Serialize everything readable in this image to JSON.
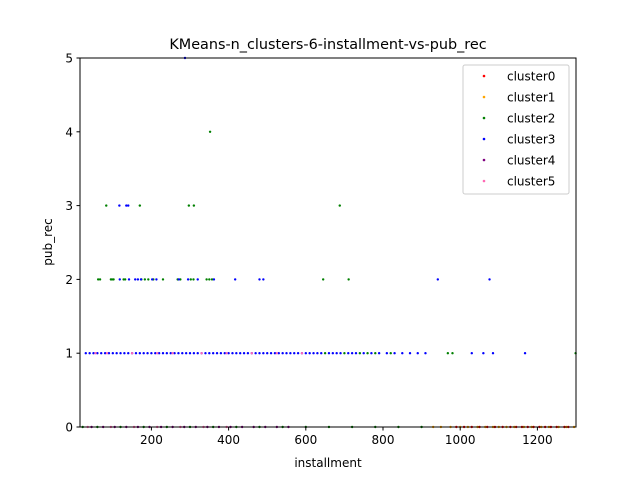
{
  "chart_data": {
    "type": "scatter",
    "title": "KMeans-n_clusters-6-installment-vs-pub_rec",
    "xlabel": "installment",
    "ylabel": "pub_rec",
    "xlim": [
      15,
      1300
    ],
    "ylim": [
      0,
      5
    ],
    "x_ticks": [
      200,
      400,
      600,
      800,
      1000,
      1200
    ],
    "y_ticks": [
      0,
      1,
      2,
      3,
      4,
      5
    ],
    "grid": false,
    "legend_position": "top-right",
    "series": [
      {
        "name": "cluster0",
        "color": "#ff0000",
        "points": [
          [
            1280,
            0
          ],
          [
            1270,
            0
          ],
          [
            1250,
            0
          ],
          [
            1235,
            0
          ],
          [
            1220,
            0
          ],
          [
            1205,
            0
          ],
          [
            1190,
            0
          ],
          [
            1175,
            0
          ],
          [
            1160,
            0
          ],
          [
            1145,
            0
          ],
          [
            1130,
            0
          ],
          [
            1110,
            0
          ],
          [
            1090,
            0
          ],
          [
            1070,
            0
          ],
          [
            1050,
            0
          ],
          [
            1030,
            0
          ],
          [
            1010,
            0
          ],
          [
            990,
            0
          ]
        ]
      },
      {
        "name": "cluster1",
        "color": "#ffa500",
        "points": [
          [
            930,
            0
          ],
          [
            950,
            0
          ],
          [
            975,
            0
          ],
          [
            1000,
            0
          ],
          [
            1020,
            0
          ],
          [
            1045,
            0
          ],
          [
            1065,
            0
          ],
          [
            1085,
            0
          ],
          [
            1100,
            0
          ],
          [
            1120,
            0
          ],
          [
            1140,
            0
          ],
          [
            1165,
            0
          ],
          [
            1185,
            0
          ],
          [
            1210,
            0
          ],
          [
            1230,
            0
          ],
          [
            1255,
            0
          ],
          [
            1275,
            0
          ],
          [
            1295,
            0
          ]
        ]
      },
      {
        "name": "cluster2",
        "color": "#008000",
        "points": [
          [
            83,
            3
          ],
          [
            170,
            3
          ],
          [
            297,
            3
          ],
          [
            310,
            3
          ],
          [
            688,
            3
          ],
          [
            352,
            4
          ],
          [
            62,
            2
          ],
          [
            67,
            2
          ],
          [
            95,
            2
          ],
          [
            98,
            2
          ],
          [
            102,
            2
          ],
          [
            128,
            2
          ],
          [
            132,
            2
          ],
          [
            174,
            2
          ],
          [
            183,
            2
          ],
          [
            192,
            2
          ],
          [
            205,
            2
          ],
          [
            230,
            2
          ],
          [
            268,
            2
          ],
          [
            275,
            2
          ],
          [
            302,
            2
          ],
          [
            309,
            2
          ],
          [
            343,
            2
          ],
          [
            350,
            2
          ],
          [
            357,
            2
          ],
          [
            645,
            2
          ],
          [
            711,
            2
          ],
          [
            1299,
            1
          ],
          [
            968,
            1
          ],
          [
            980,
            1
          ],
          [
            740,
            1
          ],
          [
            760,
            1
          ],
          [
            780,
            1
          ],
          [
            820,
            1
          ],
          [
            650,
            1
          ],
          [
            700,
            1
          ],
          [
            22,
            0
          ],
          [
            60,
            0
          ],
          [
            120,
            0
          ],
          [
            180,
            0
          ],
          [
            240,
            0
          ],
          [
            300,
            0
          ],
          [
            360,
            0
          ],
          [
            420,
            0
          ],
          [
            480,
            0
          ],
          [
            540,
            0
          ],
          [
            600,
            0
          ],
          [
            660,
            0
          ],
          [
            720,
            0
          ],
          [
            780,
            0
          ],
          [
            840,
            0
          ],
          [
            900,
            0
          ]
        ]
      },
      {
        "name": "cluster3",
        "color": "#0000ff",
        "points": [
          [
            117,
            3
          ],
          [
            135,
            3
          ],
          [
            140,
            3
          ],
          [
            287,
            5
          ],
          [
            118,
            2
          ],
          [
            142,
            2
          ],
          [
            158,
            2
          ],
          [
            165,
            2
          ],
          [
            173,
            2
          ],
          [
            202,
            2
          ],
          [
            213,
            2
          ],
          [
            271,
            2
          ],
          [
            295,
            2
          ],
          [
            320,
            2
          ],
          [
            362,
            2
          ],
          [
            417,
            2
          ],
          [
            480,
            2
          ],
          [
            490,
            2
          ],
          [
            942,
            2
          ],
          [
            1076,
            2
          ],
          [
            30,
            1
          ],
          [
            40,
            1
          ],
          [
            50,
            1
          ],
          [
            60,
            1
          ],
          [
            70,
            1
          ],
          [
            80,
            1
          ],
          [
            90,
            1
          ],
          [
            100,
            1
          ],
          [
            110,
            1
          ],
          [
            120,
            1
          ],
          [
            130,
            1
          ],
          [
            140,
            1
          ],
          [
            150,
            1
          ],
          [
            160,
            1
          ],
          [
            170,
            1
          ],
          [
            180,
            1
          ],
          [
            190,
            1
          ],
          [
            200,
            1
          ],
          [
            210,
            1
          ],
          [
            220,
            1
          ],
          [
            230,
            1
          ],
          [
            240,
            1
          ],
          [
            250,
            1
          ],
          [
            260,
            1
          ],
          [
            270,
            1
          ],
          [
            280,
            1
          ],
          [
            290,
            1
          ],
          [
            300,
            1
          ],
          [
            310,
            1
          ],
          [
            320,
            1
          ],
          [
            330,
            1
          ],
          [
            340,
            1
          ],
          [
            350,
            1
          ],
          [
            360,
            1
          ],
          [
            370,
            1
          ],
          [
            380,
            1
          ],
          [
            390,
            1
          ],
          [
            400,
            1
          ],
          [
            410,
            1
          ],
          [
            420,
            1
          ],
          [
            430,
            1
          ],
          [
            440,
            1
          ],
          [
            450,
            1
          ],
          [
            460,
            1
          ],
          [
            470,
            1
          ],
          [
            480,
            1
          ],
          [
            490,
            1
          ],
          [
            500,
            1
          ],
          [
            510,
            1
          ],
          [
            520,
            1
          ],
          [
            530,
            1
          ],
          [
            540,
            1
          ],
          [
            550,
            1
          ],
          [
            560,
            1
          ],
          [
            570,
            1
          ],
          [
            580,
            1
          ],
          [
            590,
            1
          ],
          [
            600,
            1
          ],
          [
            610,
            1
          ],
          [
            620,
            1
          ],
          [
            630,
            1
          ],
          [
            640,
            1
          ],
          [
            660,
            1
          ],
          [
            670,
            1
          ],
          [
            680,
            1
          ],
          [
            690,
            1
          ],
          [
            710,
            1
          ],
          [
            720,
            1
          ],
          [
            730,
            1
          ],
          [
            750,
            1
          ],
          [
            770,
            1
          ],
          [
            790,
            1
          ],
          [
            810,
            1
          ],
          [
            830,
            1
          ],
          [
            850,
            1
          ],
          [
            870,
            1
          ],
          [
            890,
            1
          ],
          [
            910,
            1
          ],
          [
            1030,
            1
          ],
          [
            1060,
            1
          ],
          [
            1085,
            1
          ],
          [
            1168,
            1
          ]
        ]
      },
      {
        "name": "cluster4",
        "color": "#800080",
        "points": [
          [
            45,
            0
          ],
          [
            75,
            0
          ],
          [
            105,
            0
          ],
          [
            135,
            0
          ],
          [
            165,
            0
          ],
          [
            195,
            0
          ],
          [
            225,
            0
          ],
          [
            255,
            0
          ],
          [
            285,
            0
          ],
          [
            315,
            0
          ],
          [
            345,
            0
          ],
          [
            375,
            0
          ],
          [
            405,
            0
          ],
          [
            435,
            0
          ],
          [
            465,
            0
          ],
          [
            495,
            0
          ],
          [
            525,
            0
          ],
          [
            555,
            0
          ]
        ]
      },
      {
        "name": "cluster5",
        "color": "#ff69b4",
        "points": [
          [
            55,
            1
          ],
          [
            85,
            1
          ],
          [
            150,
            1
          ],
          [
            215,
            1
          ],
          [
            255,
            1
          ],
          [
            330,
            1
          ],
          [
            395,
            1
          ],
          [
            460,
            1
          ],
          [
            525,
            1
          ],
          [
            590,
            1
          ],
          [
            35,
            0
          ],
          [
            95,
            0
          ],
          [
            155,
            0
          ],
          [
            215,
            0
          ],
          [
            275,
            0
          ],
          [
            335,
            0
          ],
          [
            395,
            0
          ]
        ]
      }
    ]
  }
}
